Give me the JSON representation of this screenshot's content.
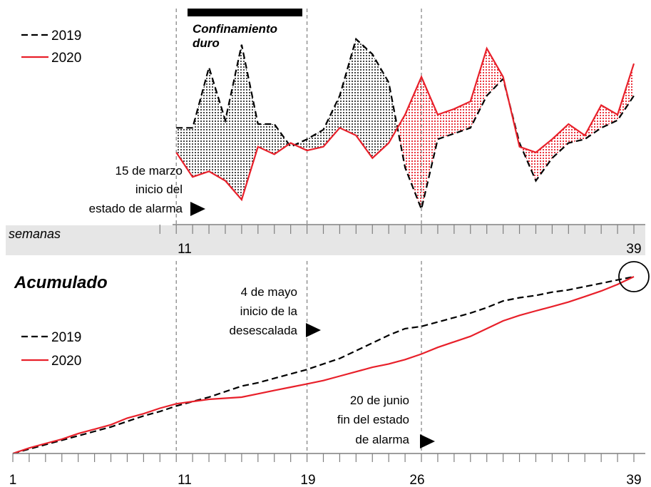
{
  "colors": {
    "y2019": "#000000",
    "y2020": "#e8202a",
    "band": "#e6e6e6",
    "grid": "#7f7f7f"
  },
  "chart_data": [
    {
      "type": "line",
      "panel": "weekly",
      "title": "",
      "xlabel": "semanas",
      "x_range": [
        11,
        39
      ],
      "x_tick_labels": [
        "11",
        "39"
      ],
      "legend": {
        "position": "top-left",
        "items": [
          "2019",
          "2020"
        ]
      },
      "series": [
        {
          "name": "2019",
          "style": "dashed",
          "x": [
            11,
            12,
            13,
            14,
            15,
            16,
            17,
            18,
            19,
            20,
            21,
            22,
            23,
            24,
            25,
            26,
            27,
            28,
            29,
            30,
            31,
            32,
            33,
            34,
            35,
            36,
            37,
            38,
            39
          ],
          "values": [
            0.62,
            0.62,
            0.3,
            0.58,
            0.18,
            0.6,
            0.6,
            0.72,
            0.68,
            0.63,
            0.45,
            0.15,
            0.23,
            0.38,
            0.83,
            1.05,
            0.68,
            0.65,
            0.62,
            0.45,
            0.36,
            0.7,
            0.9,
            0.78,
            0.7,
            0.68,
            0.62,
            0.58,
            0.45
          ]
        },
        {
          "name": "2020",
          "style": "solid",
          "x": [
            11,
            12,
            13,
            14,
            15,
            16,
            17,
            18,
            19,
            20,
            21,
            22,
            23,
            24,
            25,
            26,
            27,
            28,
            29,
            30,
            31,
            32,
            33,
            34,
            35,
            36,
            37,
            38,
            39
          ],
          "values": [
            0.75,
            0.88,
            0.85,
            0.9,
            1.0,
            0.72,
            0.76,
            0.7,
            0.74,
            0.72,
            0.62,
            0.66,
            0.78,
            0.7,
            0.55,
            0.35,
            0.55,
            0.52,
            0.48,
            0.2,
            0.35,
            0.72,
            0.75,
            0.68,
            0.6,
            0.66,
            0.5,
            0.55,
            0.28
          ]
        }
      ],
      "annotations": [
        {
          "label": "Confinamiento duro",
          "x_start": 11,
          "x_end": 19
        },
        {
          "label_lines": [
            "15 de marzo",
            "inicio del",
            "estado de alarma"
          ],
          "x": 11
        }
      ],
      "reference_lines_x": [
        11,
        19,
        26
      ]
    },
    {
      "type": "line",
      "panel": "cumulative",
      "title": "Acumulado",
      "xlabel": "",
      "x_range": [
        1,
        39
      ],
      "x_tick_labels": [
        "1",
        "11",
        "19",
        "26",
        "39"
      ],
      "legend": {
        "position": "left",
        "items": [
          "2019",
          "2020"
        ]
      },
      "series": [
        {
          "name": "2019",
          "style": "dashed",
          "x": [
            1,
            2,
            3,
            4,
            5,
            6,
            7,
            8,
            9,
            10,
            11,
            12,
            13,
            14,
            15,
            16,
            17,
            18,
            19,
            20,
            21,
            22,
            23,
            24,
            25,
            26,
            27,
            28,
            29,
            30,
            31,
            32,
            33,
            34,
            35,
            36,
            37,
            38,
            39
          ],
          "values": [
            0.0,
            0.04,
            0.08,
            0.12,
            0.16,
            0.2,
            0.24,
            0.29,
            0.34,
            0.38,
            0.43,
            0.47,
            0.51,
            0.56,
            0.61,
            0.64,
            0.68,
            0.72,
            0.76,
            0.81,
            0.86,
            0.93,
            1.0,
            1.07,
            1.13,
            1.15,
            1.19,
            1.23,
            1.27,
            1.32,
            1.38,
            1.41,
            1.43,
            1.46,
            1.48,
            1.51,
            1.54,
            1.57,
            1.6
          ]
        },
        {
          "name": "2020",
          "style": "solid",
          "x": [
            1,
            2,
            3,
            4,
            5,
            6,
            7,
            8,
            9,
            10,
            11,
            12,
            13,
            14,
            15,
            16,
            17,
            18,
            19,
            20,
            21,
            22,
            23,
            24,
            25,
            26,
            27,
            28,
            29,
            30,
            31,
            32,
            33,
            34,
            35,
            36,
            37,
            38,
            39
          ],
          "values": [
            0.0,
            0.05,
            0.09,
            0.13,
            0.18,
            0.22,
            0.26,
            0.32,
            0.36,
            0.41,
            0.45,
            0.47,
            0.49,
            0.5,
            0.51,
            0.54,
            0.57,
            0.6,
            0.63,
            0.66,
            0.7,
            0.74,
            0.78,
            0.81,
            0.85,
            0.9,
            0.96,
            1.01,
            1.06,
            1.13,
            1.2,
            1.25,
            1.29,
            1.33,
            1.37,
            1.42,
            1.47,
            1.53,
            1.6
          ]
        }
      ],
      "annotations": [
        {
          "label_lines": [
            "4 de mayo",
            "inicio de la",
            "desescalada"
          ],
          "x": 19
        },
        {
          "label_lines": [
            "20 de junio",
            "fin del estado",
            "de alarma"
          ],
          "x": 26
        }
      ],
      "reference_lines_x": [
        11,
        19,
        26
      ]
    }
  ]
}
